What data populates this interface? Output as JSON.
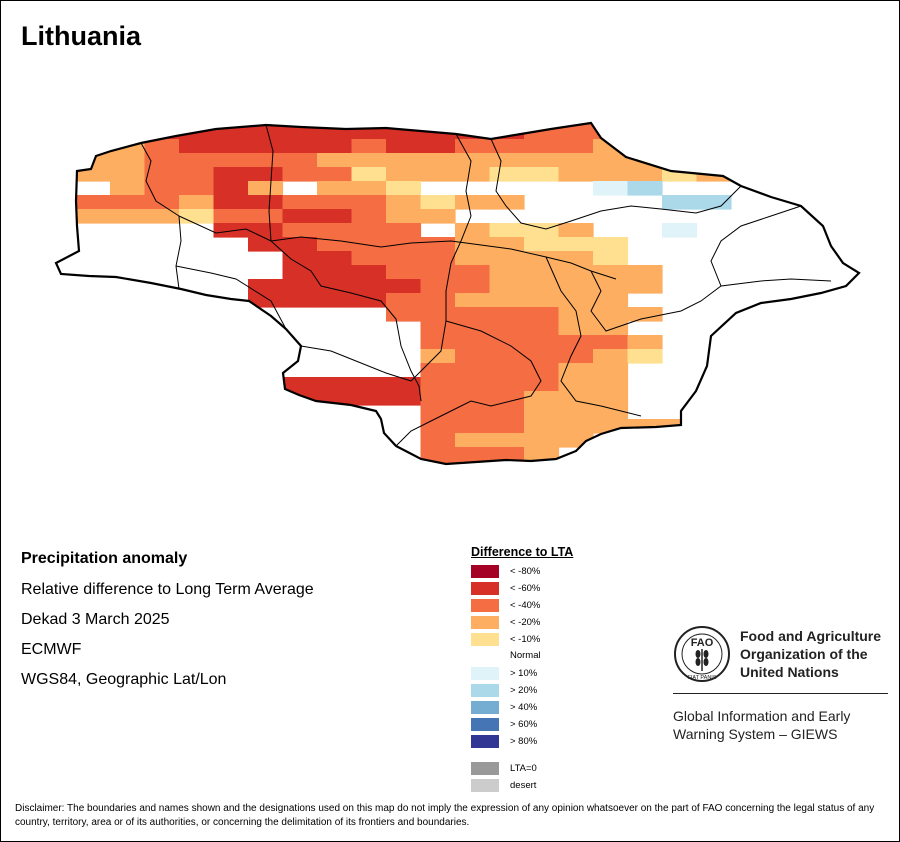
{
  "title": "Lithuania",
  "info": {
    "heading": "Precipitation anomaly",
    "line1": "Relative difference to Long Term Average",
    "line2": "Dekad 3 March 2025",
    "line3": "ECMWF",
    "line4": "WGS84, Geographic Lat/Lon"
  },
  "legend": {
    "title": "Difference to LTA",
    "items": [
      {
        "label": "< -80%",
        "color": "#a50026"
      },
      {
        "label": "< -60%",
        "color": "#d73027"
      },
      {
        "label": "< -40%",
        "color": "#f46d43"
      },
      {
        "label": "< -20%",
        "color": "#fdae61"
      },
      {
        "label": "< -10%",
        "color": "#fee090"
      },
      {
        "label": "Normal",
        "color": "#ffffff"
      },
      {
        "label": "> 10%",
        "color": "#e0f3f8"
      },
      {
        "label": "> 20%",
        "color": "#abd9e9"
      },
      {
        "label": "> 40%",
        "color": "#74add1"
      },
      {
        "label": "> 60%",
        "color": "#4575b4"
      },
      {
        "label": "> 80%",
        "color": "#313695"
      }
    ],
    "extra": [
      {
        "label": "LTA=0",
        "color": "#999999"
      },
      {
        "label": "desert",
        "color": "#cccccc"
      }
    ]
  },
  "organization": {
    "logo_text": "FAO",
    "logo_ring_text": "FIAT PANIS",
    "name_line1": "Food and Agriculture",
    "name_line2": "Organization of the",
    "name_line3": "United Nations",
    "giews_line1": "Global Information and Early",
    "giews_line2": "Warning System – GIEWS"
  },
  "disclaimer": "Disclaimer: The boundaries and names shown and the designations used on this map do not imply the expression of any opinion whatsoever on the part of FAO concerning the legal status of any country, territory, area or of its authorities, or concerning the delimitation of its frontiers and boundaries.",
  "map_grid": {
    "color_codes": {
      "1": "#a50026",
      "2": "#d73027",
      "3": "#f46d43",
      "4": "#fdae61",
      "5": "#fee090",
      "6": "#e0f3f8",
      "7": "#abd9e9",
      ".": "#ffffff"
    },
    "rows": [
      "..3333333333333333..",
      "..2222222222223333..",
      ".44322222322333344444",
      ".44333334444444444444",
      ".4433223354445544454..",
      "..43324.445.....67..",
      ".3334223334544....77",
      ".44453322344..........",
      ".....223333.4554..6..",
      "......22333344555...",
      ".......2233344445....",
      ".......22233344444..",
      "......222223344444....",
      "......22223344444.....",
      "..........33333444....",
      "...........333344....",
      "...........3333334....",
      "...........4333345....",
      "...........333344....",
      "......22222333344...",
      "......22222333444..",
      "...........333444....",
      "...........33344444.",
      "...........34444.....",
      "...........3334......",
      "...........333......"
    ]
  }
}
